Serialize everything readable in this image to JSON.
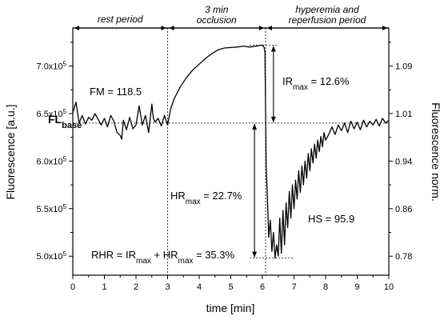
{
  "chart_data": {
    "type": "line",
    "xlabel": "time [min]",
    "ylabel": "Fluorescence [a.u.]",
    "y2label": "Fluorescence norm.",
    "xlim": [
      0,
      10
    ],
    "ylim": [
      480000,
      740000
    ],
    "x_ticks": [
      0,
      1,
      2,
      3,
      4,
      5,
      6,
      7,
      8,
      9,
      10
    ],
    "y_ticks": [
      {
        "value": 500000,
        "mant": "5.0x10",
        "exp": "5"
      },
      {
        "value": 550000,
        "mant": "5.5x10",
        "exp": "5"
      },
      {
        "value": 600000,
        "mant": "6.0x10",
        "exp": "5"
      },
      {
        "value": 650000,
        "mant": "6.5x10",
        "exp": "5"
      },
      {
        "value": 700000,
        "mant": "7.0x10",
        "exp": "5"
      }
    ],
    "y2_ticks": [
      {
        "label": "0.78",
        "value": 500000
      },
      {
        "label": "0.86",
        "value": 550000
      },
      {
        "label": "0.94",
        "value": 600000
      },
      {
        "label": "1.01",
        "value": 650000
      },
      {
        "label": "1.09",
        "value": 700000
      }
    ],
    "phase_boundaries": [
      3.0,
      6.1
    ],
    "phases": [
      {
        "label": "rest period",
        "start": 0,
        "end": 3.0
      },
      {
        "label_lines": [
          "3 min",
          "occlusion"
        ],
        "start": 3.0,
        "end": 6.1
      },
      {
        "label_lines": [
          "hyperemia and",
          "reperfusion period"
        ],
        "start": 6.1,
        "end": 10
      }
    ],
    "baseline_value": 640000,
    "max_value": 722000,
    "min_value": 498000,
    "annotations": {
      "fm": "FM = 118.5",
      "fl_base_main": "FL",
      "fl_base_sub": "base",
      "ir_main": "IR",
      "ir_sub": "max",
      "ir_value": " = 12.6%",
      "hr_main": "HR",
      "hr_sub": "max",
      "hr_value": " = 22.7%",
      "hs": "HS = 95.9",
      "rhr_a": "RHR = IR",
      "rhr_a_sub": "max",
      "rhr_b": " + HR",
      "rhr_b_sub": "max",
      "rhr_c": " = 35.3%"
    },
    "series": [
      {
        "x": [
          0,
          0.1,
          0.2,
          0.3,
          0.4,
          0.5,
          0.6,
          0.7,
          0.8,
          0.9,
          1.0,
          1.1,
          1.2,
          1.3,
          1.4,
          1.5,
          1.55,
          1.6,
          1.7,
          1.8,
          1.9,
          2.0,
          2.1,
          2.2,
          2.3,
          2.4,
          2.5,
          2.55,
          2.6,
          2.7,
          2.8,
          2.9,
          3.0,
          3.1,
          3.2,
          3.4,
          3.6,
          3.8,
          4.0,
          4.2,
          4.4,
          4.6,
          4.8,
          5.0,
          5.2,
          5.4,
          5.6,
          5.8,
          6.0,
          6.05,
          6.08,
          6.12,
          6.16,
          6.2,
          6.25,
          6.3,
          6.35,
          6.4,
          6.45,
          6.5,
          6.55,
          6.6,
          6.65,
          6.7,
          6.75,
          6.8,
          6.85,
          6.9,
          6.95,
          7.0,
          7.05,
          7.1,
          7.15,
          7.2,
          7.25,
          7.3,
          7.35,
          7.4,
          7.45,
          7.5,
          7.55,
          7.6,
          7.65,
          7.7,
          7.75,
          7.8,
          7.85,
          7.9,
          7.95,
          8.0,
          8.1,
          8.2,
          8.3,
          8.4,
          8.5,
          8.6,
          8.7,
          8.8,
          8.9,
          9.0,
          9.1,
          9.2,
          9.3,
          9.4,
          9.5,
          9.6,
          9.7,
          9.8,
          9.9,
          10.0
        ],
        "y": [
          651000,
          662000,
          640000,
          648000,
          639000,
          646000,
          643000,
          650000,
          644000,
          638000,
          645000,
          636000,
          648000,
          642000,
          630000,
          627000,
          623000,
          643000,
          633000,
          646000,
          634000,
          638000,
          658000,
          638000,
          648000,
          630000,
          660000,
          645000,
          641000,
          645000,
          637000,
          648000,
          638000,
          655000,
          665000,
          678000,
          688000,
          696000,
          702000,
          708000,
          713000,
          717000,
          719000,
          719500,
          720000,
          721000,
          720000,
          721000,
          722000,
          720000,
          715000,
          595000,
          560000,
          520000,
          538000,
          505000,
          525000,
          498000,
          512000,
          500000,
          540000,
          503000,
          548000,
          512000,
          556000,
          530000,
          568000,
          540000,
          575000,
          550000,
          580000,
          560000,
          590000,
          567000,
          595000,
          575000,
          600000,
          582000,
          608000,
          590000,
          613000,
          598000,
          618000,
          603000,
          622000,
          610000,
          626000,
          615000,
          630000,
          622000,
          628000,
          636000,
          628000,
          638000,
          632000,
          640000,
          630000,
          642000,
          634000,
          641000,
          633000,
          643000,
          636000,
          642000,
          638000,
          644000,
          637000,
          645000,
          640000,
          643000
        ]
      }
    ]
  }
}
